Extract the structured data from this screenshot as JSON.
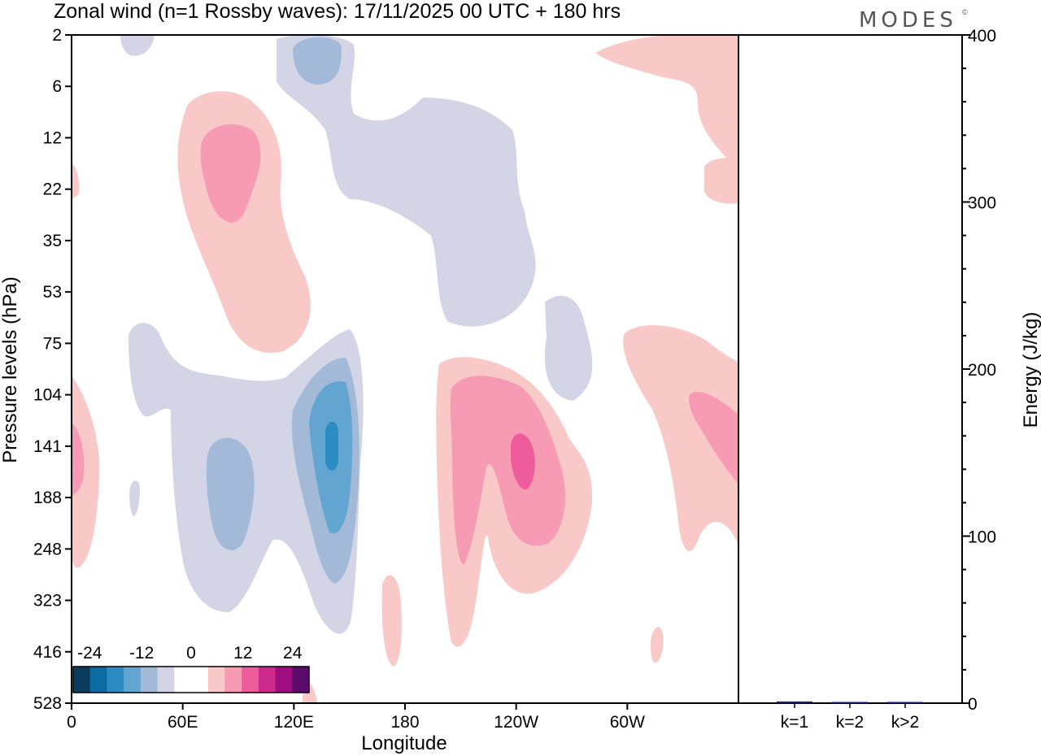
{
  "chart_data": [
    {
      "type": "contour",
      "title": "Zonal wind (n=1 Rossby waves):  17/11/2025  00 UTC  + 180 hrs",
      "xlabel": "Longitude",
      "ylabel": "Pressure levels (hPa)",
      "x_ticks": [
        "0",
        "60E",
        "120E",
        "180",
        "120W",
        "60W"
      ],
      "y_ticks": [
        "2",
        "6",
        "12",
        "22",
        "35",
        "53",
        "75",
        "104",
        "141",
        "188",
        "248",
        "323",
        "416",
        "528"
      ],
      "colorbar": {
        "tick_labels": [
          "-24",
          "-12",
          "0",
          "12",
          "24"
        ],
        "colors": [
          "#0b3c5d",
          "#0a6aa1",
          "#2b8cc4",
          "#63a5d1",
          "#a2bad8",
          "#d3d5e6",
          "#ffffff",
          "#ffffff",
          "#f8c9c7",
          "#f79ab3",
          "#ee5c9c",
          "#cc2a8c",
          "#9e0e80",
          "#5a0b6c"
        ]
      },
      "features": [
        {
          "name": "negative-upper-center",
          "sign": "negative",
          "max_level": -6
        },
        {
          "name": "positive-upper-left",
          "sign": "positive",
          "max_level": 9
        },
        {
          "name": "negative-lower-left",
          "sign": "negative",
          "max_level": -18
        },
        {
          "name": "positive-lower-center",
          "sign": "positive",
          "max_level": 15
        },
        {
          "name": "positive-lower-right",
          "sign": "positive",
          "max_level": 9
        }
      ]
    },
    {
      "type": "bar",
      "ylabel": "Energy (J/kg)",
      "categories": [
        "k=1",
        "k=2",
        "k>2"
      ],
      "values": [
        1.0,
        0.4,
        0.4
      ],
      "ylim": [
        0,
        400
      ],
      "y_ticks": [
        "0",
        "100",
        "200",
        "300",
        "400"
      ],
      "bar_color": "#1a1a6e"
    }
  ],
  "branding": {
    "logo_text": "MODES",
    "logo_mark": "©"
  }
}
